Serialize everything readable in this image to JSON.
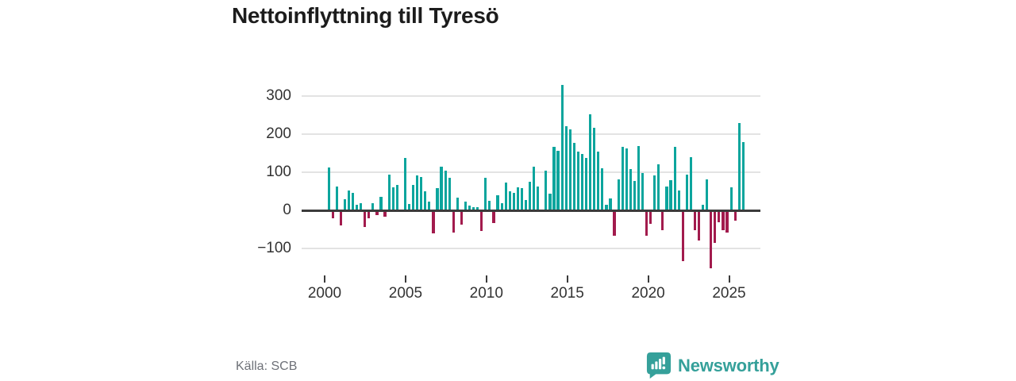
{
  "title": "Nettoinflyttning till Tyresö",
  "source": "Källa: SCB",
  "logo": {
    "text": "Newsworthy",
    "icon": "newsworthy-speech-bubble-chart-icon"
  },
  "colors": {
    "positive_bar": "#0ca59d",
    "negative_bar": "#a21b4d",
    "grid": "#e3e3e3",
    "zero_line": "#3b3b3b",
    "axis_text": "#333333",
    "title_text": "#1c1c1c",
    "source_text": "#6e7178",
    "logo_teal": "#35a09a"
  },
  "chart_data": {
    "type": "bar",
    "title": "Nettoinflyttning till Tyresö",
    "xlabel": "",
    "ylabel": "",
    "x_unit": "quarter",
    "start_year": 2000,
    "start_quarter": 1,
    "x_tick_labels": [
      "2000",
      "2005",
      "2010",
      "2015",
      "2020",
      "2025"
    ],
    "y_ticks": [
      300,
      200,
      100,
      0,
      -100
    ],
    "ylim": [
      -160,
      350
    ],
    "grid": "horizontal-only",
    "legend": "none",
    "values": [
      113,
      -20,
      63,
      -39,
      30,
      53,
      46,
      15,
      19,
      -42,
      -20,
      18,
      -12,
      35,
      -15,
      93,
      60,
      66,
      2,
      138,
      16,
      66,
      91,
      88,
      49,
      22,
      -59,
      59,
      115,
      104,
      86,
      -58,
      33,
      -37,
      23,
      12,
      8,
      8,
      -54,
      85,
      25,
      -33,
      40,
      19,
      73,
      51,
      46,
      60,
      59,
      28,
      75,
      115,
      62,
      -4,
      104,
      43,
      166,
      156,
      330,
      220,
      212,
      177,
      154,
      148,
      137,
      253,
      217,
      155,
      110,
      14,
      31,
      -66,
      81,
      167,
      163,
      108,
      77,
      168,
      97,
      -66,
      -35,
      92,
      121,
      -50,
      62,
      80,
      167,
      52,
      -133,
      94,
      139,
      -50,
      -78,
      15,
      81,
      -150,
      -85,
      -31,
      -50,
      -58,
      60,
      -25,
      230,
      180
    ]
  }
}
